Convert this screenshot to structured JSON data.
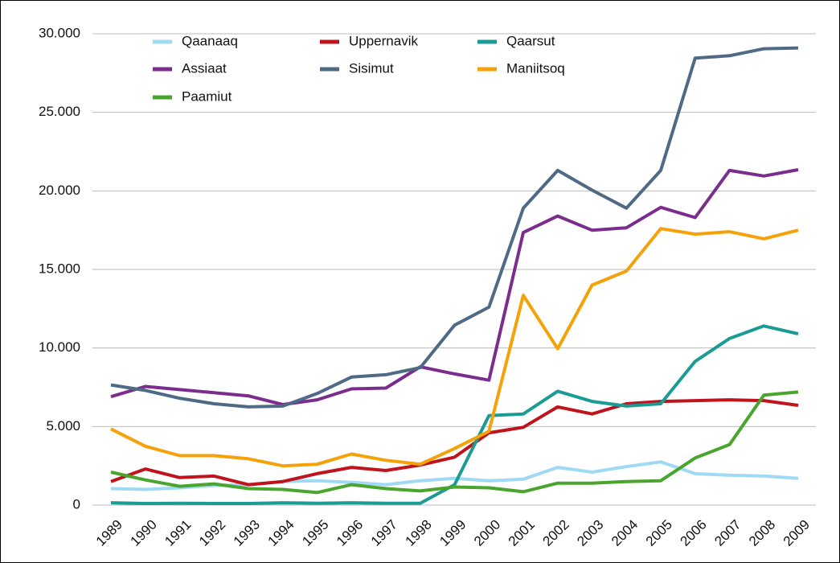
{
  "chart_data": {
    "type": "line",
    "categories": [
      "1989",
      "1990",
      "1991",
      "1992",
      "1993",
      "1994",
      "1995",
      "1996",
      "1997",
      "1998",
      "1999",
      "2000",
      "2001",
      "2002",
      "2003",
      "2004",
      "2005",
      "2006",
      "2007",
      "2008",
      "2009"
    ],
    "series": [
      {
        "name": "Qaanaaq",
        "color": "#9fd9f4",
        "values": [
          1050,
          1000,
          1100,
          1250,
          1300,
          1500,
          1550,
          1450,
          1300,
          1550,
          1700,
          1550,
          1650,
          2400,
          2100,
          2450,
          2750,
          2000,
          1900,
          1850,
          1700
        ]
      },
      {
        "name": "Uppernavik",
        "color": "#c0141d",
        "values": [
          1500,
          2300,
          1750,
          1850,
          1300,
          1500,
          2000,
          2400,
          2200,
          2550,
          3050,
          4600,
          4950,
          6250,
          5800,
          6450,
          6600,
          6650,
          6700,
          6650,
          6350
        ]
      },
      {
        "name": "Qaarsut",
        "color": "#1a9c95",
        "values": [
          150,
          100,
          120,
          100,
          100,
          150,
          120,
          150,
          120,
          120,
          1300,
          5700,
          5800,
          7250,
          6600,
          6300,
          6450,
          9150,
          10600,
          11400,
          10900
        ]
      },
      {
        "name": "Assiaat",
        "color": "#7b2d8e",
        "values": [
          6900,
          7550,
          7350,
          7150,
          6950,
          6400,
          6700,
          7400,
          7450,
          8800,
          8350,
          7950,
          17350,
          18400,
          17500,
          17650,
          18950,
          18300,
          21300,
          20950,
          21350
        ]
      },
      {
        "name": "Sisimut",
        "color": "#4e6a85",
        "values": [
          7650,
          7300,
          6800,
          6450,
          6250,
          6300,
          7100,
          8150,
          8300,
          8750,
          11450,
          12600,
          18900,
          21300,
          20050,
          18900,
          21300,
          28450,
          28600,
          29050,
          29100
        ]
      },
      {
        "name": "Maniitsoq",
        "color": "#f5a20a",
        "values": [
          4850,
          3750,
          3150,
          3150,
          2950,
          2500,
          2600,
          3250,
          2850,
          2600,
          3600,
          4700,
          13350,
          9950,
          14000,
          14900,
          17600,
          17250,
          17400,
          16950,
          17500
        ]
      },
      {
        "name": "Paamiut",
        "color": "#4aa52e",
        "values": [
          2100,
          1600,
          1200,
          1350,
          1050,
          1000,
          800,
          1300,
          1050,
          900,
          1150,
          1100,
          850,
          1400,
          1400,
          1500,
          1550,
          3000,
          3850,
          7000,
          7200
        ]
      }
    ],
    "ylim": [
      0,
      30000
    ],
    "yticks": [
      0,
      {
        "value": 5000,
        "label": "5.000"
      },
      {
        "value": 10000,
        "label": "10.000"
      },
      {
        "value": 15000,
        "label": "15.000"
      },
      {
        "value": 20000,
        "label": "20.000"
      },
      {
        "value": 25000,
        "label": "25.000"
      },
      {
        "value": 30000,
        "label": "30.000"
      }
    ],
    "grid": true,
    "legend": "top"
  }
}
